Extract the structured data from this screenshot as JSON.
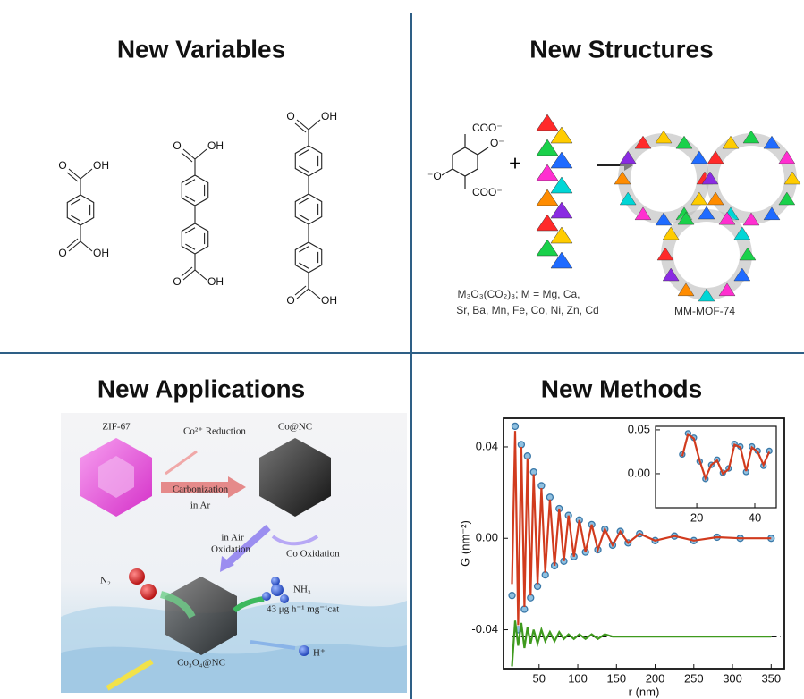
{
  "panels": {
    "variables": {
      "title": "New Variables",
      "labels": {
        "o": "O",
        "oh": "OH"
      }
    },
    "structures": {
      "title": "New Structures",
      "linker": {
        "coo": "COO⁻",
        "o_right": "O⁻",
        "o_left": "⁻O",
        "plus": "+"
      },
      "formula": [
        "M₃O₃(CO₂)₃; M = Mg, Ca,",
        "Sr, Ba, Mn, Fe, Co, Ni, Zn, Cd"
      ],
      "product": "MM-MOF-74"
    },
    "applications": {
      "title": "New Applications",
      "labels": {
        "zif": "ZIF-67",
        "reduction": "Co²⁺ Reduction",
        "conc": "Co@NC",
        "carbonization": "Carbonization",
        "in_ar": "in Ar",
        "in_air": "in Air",
        "oxidation": "Oxidation",
        "co_oxidation": "Co Oxidation",
        "n2": "N₂",
        "nh3": "NH₃",
        "rate": "43 μg h⁻¹ mg⁻¹cat",
        "product": "Co₃O₄@NC",
        "h": "H⁺"
      }
    },
    "methods": {
      "title": "New Methods"
    }
  },
  "chart_data": [
    {
      "type": "line",
      "y_label": "G (nm⁻²)",
      "x_label": "r (nm)",
      "x": [
        15,
        19,
        23,
        27,
        31,
        35,
        39,
        43,
        48,
        53,
        58,
        64,
        70,
        76,
        82,
        88,
        95,
        102,
        110,
        118,
        126,
        135,
        145,
        155,
        165,
        180,
        200,
        225,
        250,
        280,
        310,
        350
      ],
      "series": [
        {
          "color": "#3a78a8",
          "marker": "circle",
          "values": [
            -0.025,
            0.049,
            -0.04,
            0.041,
            -0.031,
            0.036,
            -0.026,
            0.029,
            -0.021,
            0.023,
            -0.016,
            0.018,
            -0.012,
            0.013,
            -0.01,
            0.01,
            -0.008,
            0.008,
            -0.006,
            0.006,
            -0.005,
            0.004,
            -0.003,
            0.003,
            -0.002,
            0.002,
            -0.001,
            0.001,
            -0.001,
            0.0005,
            0,
            0
          ]
        },
        {
          "color": "#d13b1e",
          "values": [
            -0.02,
            0.047,
            -0.038,
            0.04,
            -0.03,
            0.035,
            -0.025,
            0.028,
            -0.02,
            0.022,
            -0.015,
            0.017,
            -0.012,
            0.013,
            -0.01,
            0.01,
            -0.008,
            0.008,
            -0.006,
            0.006,
            -0.005,
            0.004,
            -0.003,
            0.003,
            -0.002,
            0.002,
            -0.001,
            0.001,
            -0.001,
            0.0005,
            0,
            0
          ]
        },
        {
          "color": "#3f9a1e",
          "values": [
            -0.056,
            -0.036,
            -0.047,
            -0.037,
            -0.048,
            -0.039,
            -0.046,
            -0.04,
            -0.046,
            -0.04,
            -0.045,
            -0.041,
            -0.045,
            -0.041,
            -0.044,
            -0.042,
            -0.044,
            -0.042,
            -0.044,
            -0.042,
            -0.044,
            -0.042,
            -0.043,
            -0.043,
            -0.043,
            -0.043,
            -0.043,
            -0.043,
            -0.043,
            -0.043,
            -0.043,
            -0.043
          ]
        }
      ],
      "baseline": -0.043,
      "xlim": [
        4,
        367
      ],
      "ylim": [
        -0.057,
        0.0525
      ],
      "xticks": [
        50,
        100,
        150,
        200,
        250,
        300,
        350
      ],
      "yticks": [
        {
          "value": -0.04,
          "label": "-0.04"
        },
        {
          "value": 0,
          "label": "0.00"
        },
        {
          "value": 0.04,
          "label": "0.04"
        }
      ]
    },
    {
      "type": "line",
      "x": [
        15,
        17,
        19,
        21,
        23,
        25,
        27,
        29,
        31,
        33,
        35,
        37,
        39,
        41,
        43,
        45
      ],
      "series": [
        {
          "color": "#3a78a8",
          "marker": "circle",
          "values": [
            0.022,
            0.046,
            0.041,
            0.014,
            -0.006,
            0.01,
            0.016,
            0.001,
            0.006,
            0.034,
            0.031,
            0.002,
            0.031,
            0.026,
            0.009,
            0.026
          ]
        },
        {
          "color": "#d13b1e",
          "values": [
            0.02,
            0.045,
            0.04,
            0.015,
            -0.005,
            0.01,
            0.015,
            0.0,
            0.005,
            0.033,
            0.03,
            0.003,
            0.03,
            0.025,
            0.01,
            0.025
          ]
        }
      ],
      "xlim": [
        5.8,
        47.4
      ],
      "ylim": [
        -0.0388,
        0.054
      ],
      "xticks": [
        20,
        40
      ],
      "yticks": [
        {
          "value": 0,
          "label": "0.00"
        },
        {
          "value": 0.05,
          "label": "0.05"
        }
      ]
    }
  ]
}
